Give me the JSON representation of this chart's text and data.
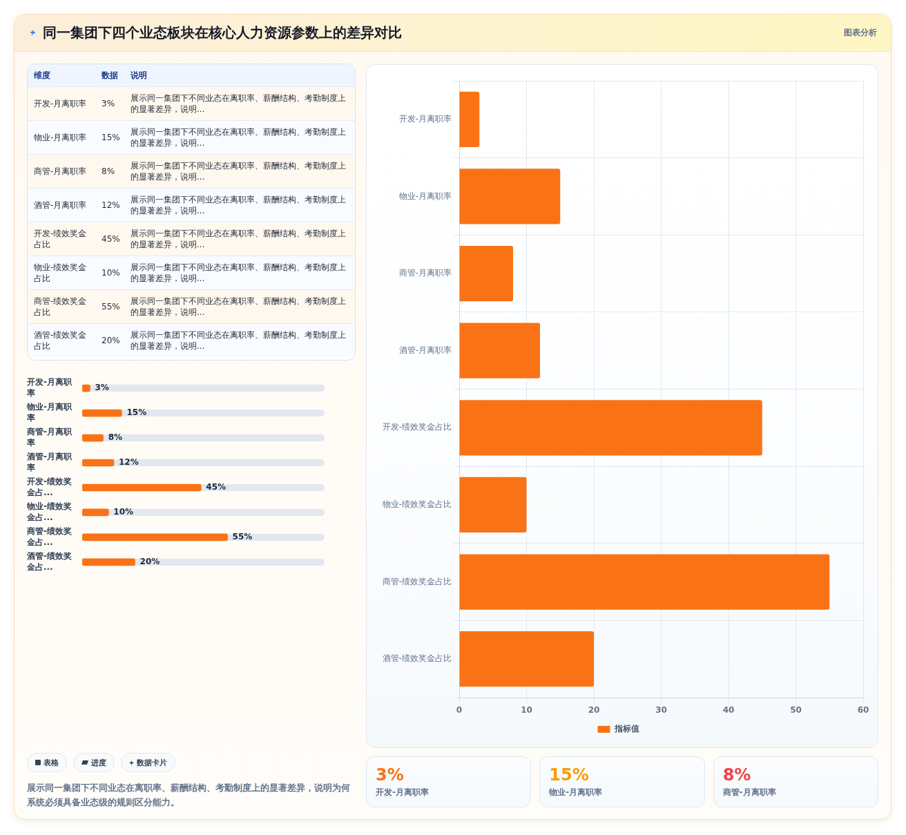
{
  "chart_data": [
    {
      "type": "other",
      "title": "同一集团下四个业态板块在核心人力资源参数上的差异对比",
      "annotations": [
        "图表分析"
      ]
    },
    {
      "type": "other",
      "categories": [
        "开发-月离职率",
        "物业-月离职率",
        "商管-月离职率",
        "酒管-月离职率",
        "开发-绩效奖金占比",
        "物业-绩效奖金占比",
        "商管-绩效奖金占比",
        "酒管-绩效奖金占比"
      ],
      "value_labels": [
        "3%",
        "15%",
        "8%",
        "12%",
        "45%",
        "10%",
        "55%",
        "20%"
      ],
      "annotations": [
        "维度",
        "数据",
        "说明",
        "展示同一集团下不同业态在离职率、薪酬结构、考勤制度上的显著差异，说明...",
        "展示同一集团下不同业态在离职率、薪酬结构、考勤制度上的显著差异，说明...",
        "展示同一集团下不同业态在离职率、薪酬结构、考勤制度上的显著差异，说明...",
        "展示同一集团下不同业态在离职率、薪酬结构、考勤制度上的显著差异，说明...",
        "展示同一集团下不同业态在离职率、薪酬结构、考勤制度上的显著差异，说明...",
        "展示同一集团下不同业态在离职率、薪酬结构、考勤制度上的显著差异，说明...",
        "展示同一集团下不同业态在离职率、薪酬结构、考勤制度上的显著差异，说明...",
        "展示同一集团下不同业态在离职率、薪酬结构、考勤制度上的显著差异，说明..."
      ]
    },
    {
      "type": "bar",
      "orientation": "horizontal",
      "categories": [
        "开发-月离职率",
        "物业-月离职率",
        "商管-月离职率",
        "酒管-月离职率",
        "开发-绩效奖金占...",
        "物业-绩效奖金占...",
        "商管-绩效奖金占...",
        "酒管-绩效奖金占..."
      ],
      "values": [
        3,
        15,
        8,
        12,
        45,
        10,
        55,
        20
      ],
      "value_labels": [
        "3%",
        "15%",
        "8%",
        "12%",
        "45%",
        "10%",
        "55%",
        "20%"
      ],
      "color": "#f97316"
    },
    {
      "type": "other",
      "annotations": [
        "表格",
        "进度",
        "数据卡片",
        "展示同一集团下不同业态在离职率、薪酬结构、考勤制度上的显著差异，说明为何系统必须具备业态级的规则区分能力。"
      ]
    },
    {
      "type": "bar",
      "orientation": "horizontal",
      "categories": [
        "开发-月离职率",
        "物业-月离职率",
        "商管-月离职率",
        "酒管-月离职率",
        "开发-绩效奖金占比",
        "物业-绩效奖金占比",
        "商管-绩效奖金占比",
        "酒管-绩效奖金占比"
      ],
      "series": [
        {
          "name": "指标值",
          "color": "#f97316",
          "values": [
            3,
            15,
            8,
            12,
            45,
            10,
            55,
            20
          ]
        }
      ],
      "xlim": [
        0,
        60
      ],
      "xticks": [
        0,
        10,
        20,
        30,
        40,
        50,
        60
      ],
      "grid": true,
      "legend": "bottom"
    },
    {
      "type": "other",
      "categories": [
        "开发-月离职率",
        "物业-月离职率",
        "商管-月离职率"
      ],
      "value_labels": [
        "3%",
        "15%",
        "8%"
      ]
    }
  ]
}
